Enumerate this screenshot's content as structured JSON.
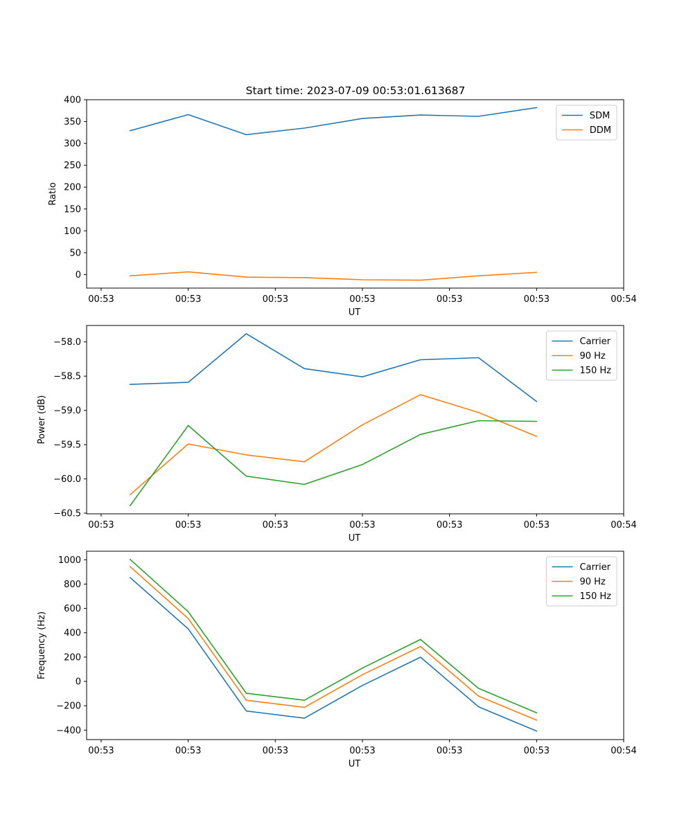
{
  "figure_title": "Start time: 2023-07-09 00:53:01.613687",
  "colors": {
    "blue": "#1f77b4",
    "orange": "#ff7f0e",
    "green": "#2ca02c"
  },
  "chart_data": [
    {
      "type": "line",
      "title": "Start time: 2023-07-09 00:53:01.613687",
      "xlabel": "UT",
      "ylabel": "Ratio",
      "x": [
        1,
        2,
        3,
        4,
        5,
        6,
        7,
        8
      ],
      "xlim": [
        0.25,
        9.5
      ],
      "xticks": [
        0.5,
        2,
        3.5,
        5,
        6.5,
        8,
        9.5
      ],
      "xtick_labels": [
        "00:53",
        "00:53",
        "00:53",
        "00:53",
        "00:53",
        "00:53",
        "00:54"
      ],
      "ylim": [
        -31,
        400
      ],
      "yticks": [
        0,
        50,
        100,
        150,
        200,
        250,
        300,
        350,
        400
      ],
      "ytick_labels": [
        "0",
        "50",
        "100",
        "150",
        "200",
        "250",
        "300",
        "350",
        "400"
      ],
      "legend": "upper right",
      "series": [
        {
          "name": "SDM",
          "color": "#1f77b4",
          "values": [
            329,
            366,
            320,
            335,
            357,
            365,
            362,
            382
          ]
        },
        {
          "name": "DDM",
          "color": "#ff7f0e",
          "values": [
            -3,
            6,
            -6,
            -7,
            -12,
            -13,
            -3,
            5
          ]
        }
      ]
    },
    {
      "type": "line",
      "title": "",
      "xlabel": "UT",
      "ylabel": "Power (dB)",
      "x": [
        1,
        2,
        3,
        4,
        5,
        6,
        7,
        8
      ],
      "xlim": [
        0.25,
        9.5
      ],
      "xticks": [
        0.5,
        2,
        3.5,
        5,
        6.5,
        8,
        9.5
      ],
      "xtick_labels": [
        "00:53",
        "00:53",
        "00:53",
        "00:53",
        "00:53",
        "00:53",
        "00:54"
      ],
      "ylim": [
        -60.51,
        -57.76
      ],
      "yticks": [
        -60.5,
        -60.0,
        -59.5,
        -59.0,
        -58.5,
        -58.0
      ],
      "ytick_labels": [
        "−60.5",
        "−60.0",
        "−59.5",
        "−59.0",
        "−58.5",
        "−58.0"
      ],
      "legend": "upper right",
      "series": [
        {
          "name": "Carrier",
          "color": "#1f77b4",
          "values": [
            -58.62,
            -58.59,
            -57.88,
            -58.39,
            -58.51,
            -58.26,
            -58.23,
            -58.87
          ]
        },
        {
          "name": "90 Hz",
          "color": "#ff7f0e",
          "values": [
            -60.23,
            -59.49,
            -59.65,
            -59.75,
            -59.21,
            -58.77,
            -59.03,
            -59.38
          ]
        },
        {
          "name": "150 Hz",
          "color": "#2ca02c",
          "values": [
            -60.39,
            -59.22,
            -59.96,
            -60.08,
            -59.79,
            -59.35,
            -59.15,
            -59.16
          ]
        }
      ]
    },
    {
      "type": "line",
      "title": "",
      "xlabel": "UT",
      "ylabel": "Frequency (Hz)",
      "x": [
        1,
        2,
        3,
        4,
        5,
        6,
        7,
        8
      ],
      "xlim": [
        0.25,
        9.5
      ],
      "xticks": [
        0.5,
        2,
        3.5,
        5,
        6.5,
        8,
        9.5
      ],
      "xtick_labels": [
        "00:53",
        "00:53",
        "00:53",
        "00:53",
        "00:53",
        "00:53",
        "00:54"
      ],
      "ylim": [
        -478,
        1070
      ],
      "yticks": [
        -400,
        -200,
        0,
        200,
        400,
        600,
        800,
        1000
      ],
      "ytick_labels": [
        "−400",
        "−200",
        "0",
        "200",
        "400",
        "600",
        "800",
        "1000"
      ],
      "legend": "upper right",
      "series": [
        {
          "name": "Carrier",
          "color": "#1f77b4",
          "values": [
            853,
            432,
            -243,
            -302,
            -33,
            199,
            -208,
            -408
          ]
        },
        {
          "name": "90 Hz",
          "color": "#ff7f0e",
          "values": [
            943,
            517,
            -155,
            -213,
            55,
            287,
            -120,
            -318
          ]
        },
        {
          "name": "150 Hz",
          "color": "#2ca02c",
          "values": [
            1003,
            573,
            -97,
            -155,
            110,
            345,
            -57,
            -258
          ]
        }
      ]
    }
  ]
}
